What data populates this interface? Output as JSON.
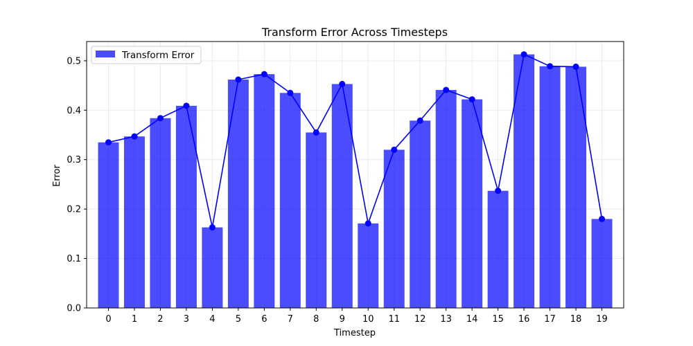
{
  "chart_data": {
    "type": "bar",
    "title": "Transform Error Across Timesteps",
    "xlabel": "Timestep",
    "ylabel": "Error",
    "categories": [
      "0",
      "1",
      "2",
      "3",
      "4",
      "5",
      "6",
      "7",
      "8",
      "9",
      "10",
      "11",
      "12",
      "13",
      "14",
      "15",
      "16",
      "17",
      "18",
      "19"
    ],
    "series": [
      {
        "name": "Transform Error",
        "kind": "bar",
        "values": [
          0.335,
          0.347,
          0.384,
          0.409,
          0.163,
          0.462,
          0.473,
          0.435,
          0.355,
          0.453,
          0.171,
          0.32,
          0.379,
          0.441,
          0.422,
          0.237,
          0.513,
          0.489,
          0.488,
          0.18
        ]
      },
      {
        "kind": "line",
        "marker": "circle",
        "values": [
          0.335,
          0.347,
          0.384,
          0.409,
          0.163,
          0.462,
          0.473,
          0.435,
          0.355,
          0.453,
          0.171,
          0.32,
          0.379,
          0.441,
          0.422,
          0.237,
          0.513,
          0.489,
          0.488,
          0.18
        ]
      }
    ],
    "yticks": [
      "0.0",
      "0.1",
      "0.2",
      "0.3",
      "0.4",
      "0.5"
    ],
    "ylim": [
      0,
      0.539
    ],
    "grid": true,
    "legend_position": "top-left",
    "colors": {
      "bar": "#0000ff",
      "bar_opacity": 0.7,
      "line": "#0000ff",
      "grid": "#e6e6e6",
      "axis": "#000000"
    }
  }
}
